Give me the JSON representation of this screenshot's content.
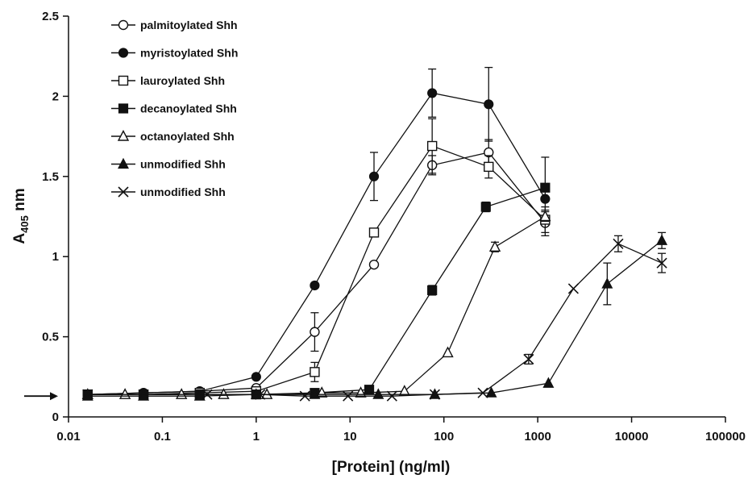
{
  "chart_data": {
    "type": "line",
    "xscale": "log",
    "xlabel": "[Protein] (ng/ml)",
    "ylabel_main": "A",
    "ylabel_sub": "405",
    "ylabel_unit": " nm",
    "xlim": [
      0.01,
      100000
    ],
    "ylim": [
      0,
      2.5
    ],
    "x_ticks": [
      {
        "value": 0.01,
        "label": "0.01"
      },
      {
        "value": 0.1,
        "label": "0.1"
      },
      {
        "value": 1,
        "label": "1"
      },
      {
        "value": 10,
        "label": "10"
      },
      {
        "value": 100,
        "label": "100"
      },
      {
        "value": 1000,
        "label": "1000"
      },
      {
        "value": 10000,
        "label": "10000"
      },
      {
        "value": 100000,
        "label": "100000"
      }
    ],
    "y_ticks": [
      {
        "value": 0,
        "label": "0"
      },
      {
        "value": 0.5,
        "label": "0.5"
      },
      {
        "value": 1,
        "label": "1"
      },
      {
        "value": 1.5,
        "label": "1.5"
      },
      {
        "value": 2,
        "label": "2"
      },
      {
        "value": 2.5,
        "label": "2.5"
      }
    ],
    "baseline_arrow_value": 0.13,
    "legend_position": "top-left",
    "grid": false,
    "series": [
      {
        "name": "palmitoylated Shh",
        "marker": "circle-open",
        "points": [
          {
            "x": 0.016,
            "y": 0.14
          },
          {
            "x": 0.063,
            "y": 0.15
          },
          {
            "x": 0.25,
            "y": 0.16
          },
          {
            "x": 1.0,
            "y": 0.18
          },
          {
            "x": 4.2,
            "y": 0.53,
            "err": 0.12
          },
          {
            "x": 18,
            "y": 0.95
          },
          {
            "x": 75,
            "y": 1.57,
            "err": 0.06
          },
          {
            "x": 300,
            "y": 1.65,
            "err": 0.08
          },
          {
            "x": 1200,
            "y": 1.21,
            "err": 0.08
          }
        ]
      },
      {
        "name": "myristoylated Shh",
        "marker": "circle-filled",
        "points": [
          {
            "x": 0.016,
            "y": 0.14
          },
          {
            "x": 0.063,
            "y": 0.15
          },
          {
            "x": 0.25,
            "y": 0.16
          },
          {
            "x": 1.0,
            "y": 0.25
          },
          {
            "x": 4.2,
            "y": 0.82
          },
          {
            "x": 18,
            "y": 1.5,
            "err": 0.15
          },
          {
            "x": 75,
            "y": 2.02,
            "err": 0.15
          },
          {
            "x": 300,
            "y": 1.95,
            "err": 0.23
          },
          {
            "x": 1200,
            "y": 1.36
          }
        ]
      },
      {
        "name": "lauroylated Shh",
        "marker": "square-open",
        "points": [
          {
            "x": 0.016,
            "y": 0.14
          },
          {
            "x": 0.063,
            "y": 0.14
          },
          {
            "x": 0.25,
            "y": 0.15
          },
          {
            "x": 1.0,
            "y": 0.16
          },
          {
            "x": 4.2,
            "y": 0.28,
            "err": 0.06
          },
          {
            "x": 18,
            "y": 1.15
          },
          {
            "x": 75,
            "y": 1.69,
            "err": 0.17
          },
          {
            "x": 300,
            "y": 1.56,
            "err": 0.07
          },
          {
            "x": 1200,
            "y": 1.23,
            "err": 0.08
          }
        ]
      },
      {
        "name": "decanoylated Shh",
        "marker": "square-filled",
        "points": [
          {
            "x": 0.016,
            "y": 0.14
          },
          {
            "x": 0.063,
            "y": 0.14
          },
          {
            "x": 0.25,
            "y": 0.14
          },
          {
            "x": 1.0,
            "y": 0.14
          },
          {
            "x": 4.2,
            "y": 0.15
          },
          {
            "x": 16,
            "y": 0.17
          },
          {
            "x": 75,
            "y": 0.79,
            "err": 0.03
          },
          {
            "x": 280,
            "y": 1.31,
            "err": 0.03
          },
          {
            "x": 1200,
            "y": 1.43,
            "err": 0.19
          }
        ]
      },
      {
        "name": "octanoylated Shh",
        "marker": "triangle-open",
        "points": [
          {
            "x": 0.016,
            "y": 0.14
          },
          {
            "x": 0.04,
            "y": 0.14
          },
          {
            "x": 0.16,
            "y": 0.14
          },
          {
            "x": 0.45,
            "y": 0.14
          },
          {
            "x": 1.3,
            "y": 0.14
          },
          {
            "x": 5.0,
            "y": 0.15
          },
          {
            "x": 13,
            "y": 0.15
          },
          {
            "x": 38,
            "y": 0.16
          },
          {
            "x": 110,
            "y": 0.4
          },
          {
            "x": 350,
            "y": 1.06,
            "err": 0.03
          },
          {
            "x": 1200,
            "y": 1.25,
            "err": 0.03
          }
        ]
      },
      {
        "name": "unmodified Shh",
        "marker": "triangle-filled",
        "points": [
          {
            "x": 0.016,
            "y": 0.13
          },
          {
            "x": 0.063,
            "y": 0.13
          },
          {
            "x": 0.25,
            "y": 0.13
          },
          {
            "x": 1.0,
            "y": 0.14
          },
          {
            "x": 4.2,
            "y": 0.14
          },
          {
            "x": 20,
            "y": 0.14
          },
          {
            "x": 80,
            "y": 0.14
          },
          {
            "x": 320,
            "y": 0.15
          },
          {
            "x": 1300,
            "y": 0.21
          },
          {
            "x": 5500,
            "y": 0.83,
            "err": 0.13
          },
          {
            "x": 21000,
            "y": 1.1,
            "err": 0.05
          }
        ]
      },
      {
        "name": "unmodified Shh",
        "marker": "x",
        "points": [
          {
            "x": 0.016,
            "y": 0.14
          },
          {
            "x": 0.3,
            "y": 0.14
          },
          {
            "x": 1.1,
            "y": 0.14
          },
          {
            "x": 3.3,
            "y": 0.13
          },
          {
            "x": 9.5,
            "y": 0.13
          },
          {
            "x": 28,
            "y": 0.13
          },
          {
            "x": 80,
            "y": 0.14
          },
          {
            "x": 260,
            "y": 0.15
          },
          {
            "x": 800,
            "y": 0.36,
            "err": 0.03
          },
          {
            "x": 2400,
            "y": 0.8
          },
          {
            "x": 7200,
            "y": 1.08,
            "err": 0.05
          },
          {
            "x": 21000,
            "y": 0.96,
            "err": 0.06
          }
        ]
      }
    ]
  }
}
